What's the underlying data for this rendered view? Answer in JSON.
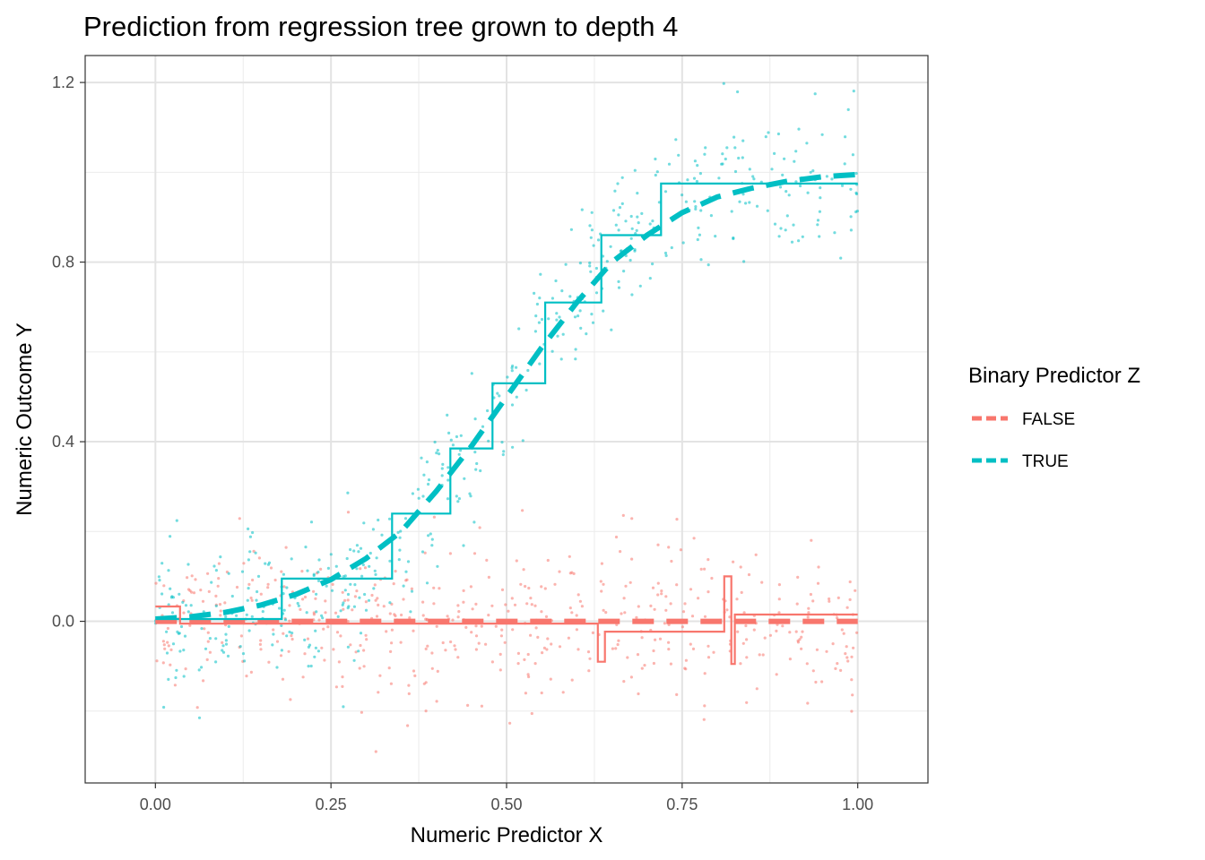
{
  "chart_data": {
    "type": "line",
    "title": "Prediction from regression tree grown to depth 4",
    "xlabel": "Numeric Predictor X",
    "ylabel": "Numeric Outcome Y",
    "xlim": [
      -0.1,
      1.1
    ],
    "ylim": [
      -0.36,
      1.26
    ],
    "x_ticks": [
      0.0,
      0.25,
      0.5,
      0.75,
      1.0
    ],
    "x_tick_labels": [
      "0.00",
      "0.25",
      "0.50",
      "0.75",
      "1.00"
    ],
    "y_ticks": [
      0.0,
      0.4,
      0.8,
      1.2
    ],
    "y_tick_labels": [
      "0.0",
      "0.4",
      "0.8",
      "1.2"
    ],
    "grid": true,
    "legend": {
      "title": "Binary Predictor Z",
      "position": "right",
      "entries": [
        "FALSE",
        "TRUE"
      ]
    },
    "colors": {
      "FALSE": "#f8766d",
      "TRUE": "#00bfc4"
    },
    "series": [
      {
        "name": "TRUE",
        "kind": "tree_prediction_step",
        "x": [
          0.0,
          0.18,
          0.18,
          0.337,
          0.337,
          0.42,
          0.42,
          0.48,
          0.48,
          0.555,
          0.555,
          0.635,
          0.635,
          0.72,
          0.72,
          1.0
        ],
        "y": [
          0.005,
          0.005,
          0.095,
          0.095,
          0.24,
          0.24,
          0.385,
          0.385,
          0.53,
          0.53,
          0.71,
          0.71,
          0.86,
          0.86,
          0.975,
          0.975
        ]
      },
      {
        "name": "FALSE",
        "kind": "tree_prediction_step",
        "x": [
          0.0,
          0.035,
          0.035,
          0.63,
          0.63,
          0.64,
          0.64,
          0.81,
          0.81,
          0.82,
          0.82,
          0.825,
          0.825,
          0.83,
          0.83,
          1.0
        ],
        "y": [
          0.033,
          0.033,
          -0.005,
          -0.005,
          -0.09,
          -0.09,
          -0.023,
          -0.023,
          0.1,
          0.1,
          -0.095,
          -0.095,
          0.015,
          0.015,
          0.015,
          0.015
        ]
      },
      {
        "name": "TRUE",
        "kind": "true_function_dashed",
        "x": [
          0.0,
          0.05,
          0.1,
          0.15,
          0.2,
          0.25,
          0.3,
          0.35,
          0.4,
          0.45,
          0.5,
          0.55,
          0.6,
          0.65,
          0.7,
          0.75,
          0.8,
          0.85,
          0.9,
          0.95,
          1.0
        ],
        "y": [
          0.005,
          0.01,
          0.02,
          0.036,
          0.06,
          0.093,
          0.14,
          0.2,
          0.29,
          0.39,
          0.5,
          0.61,
          0.71,
          0.8,
          0.86,
          0.91,
          0.945,
          0.965,
          0.98,
          0.99,
          0.995
        ]
      },
      {
        "name": "FALSE",
        "kind": "true_function_dashed",
        "x": [
          0.0,
          1.0
        ],
        "y": [
          0.0,
          0.0
        ]
      }
    ],
    "scatter_noise_sd": {
      "TRUE": 0.085,
      "FALSE": 0.09
    },
    "points_per_group": 500
  }
}
